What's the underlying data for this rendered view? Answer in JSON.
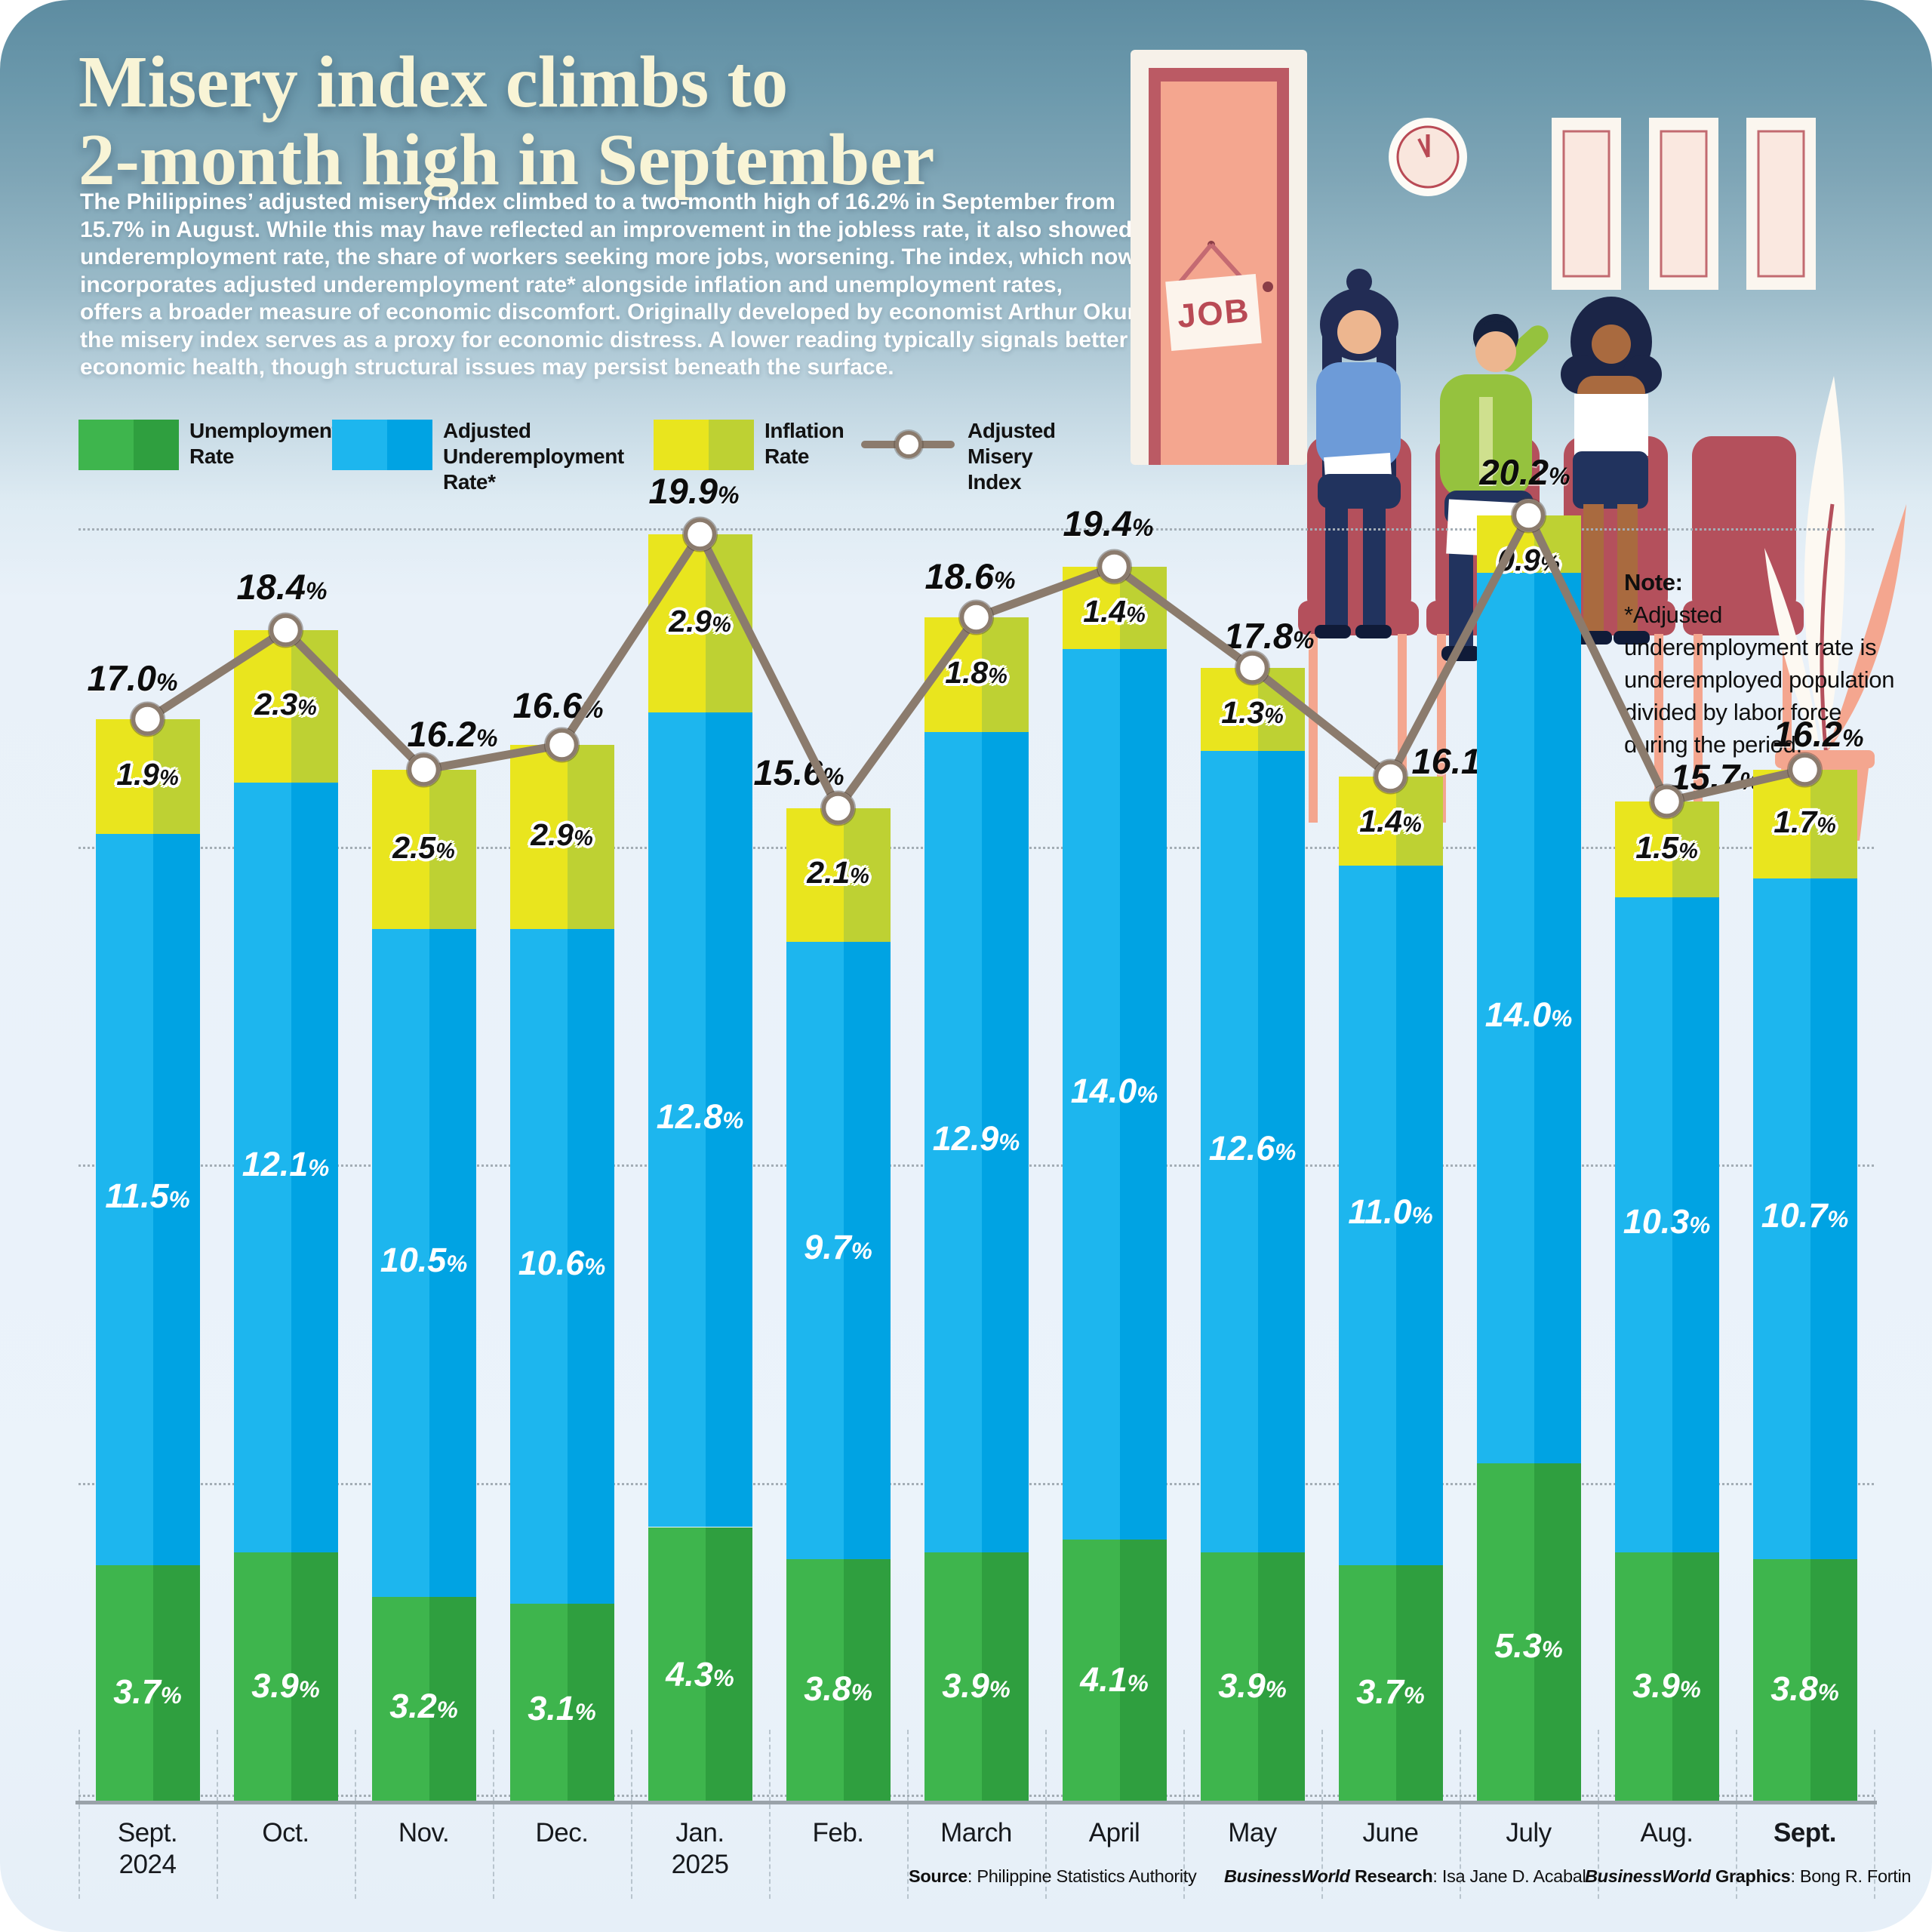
{
  "header": {
    "title_line1": "Misery index climbs to",
    "title_line2": "2-month high in September",
    "intro": "The Philippines’ adjusted misery index climbed to a two-month high of 16.2% in September from\n15.7% in August. While this may have reflected an improvement in the jobless rate, it also showed\nunderemployment rate, the share of workers seeking more jobs, worsening. The index, which now\nincorporates adjusted underemployment rate* alongside inflation and unemployment rates,\noffers a broader measure of economic discomfort. Originally developed by economist Arthur Okun,\nthe misery index serves as a proxy for economic distress. A lower reading typically signals better\neconomic health, though structural issues may persist beneath the surface."
  },
  "legend": {
    "items": [
      {
        "label": "Unemployment\nRate",
        "swatch": "green"
      },
      {
        "label": "Adjusted\nUnderemployment Rate*",
        "swatch": "blue"
      },
      {
        "label": "Inflation\nRate",
        "swatch": "yellow"
      },
      {
        "label": "Adjusted\nMisery Index",
        "swatch": "line"
      }
    ]
  },
  "note": {
    "heading": "Note:",
    "body": "*Adjusted\nunderemployment rate is\nunderemployed population\ndivided by labor force\nduring the period."
  },
  "illustration": {
    "door_sign": "JOB"
  },
  "chart_data": {
    "type": "bar",
    "subtype": "stacked-bars-with-line",
    "categories": [
      "Sept.\n2024",
      "Oct.",
      "Nov.",
      "Dec.",
      "Jan.\n2025",
      "Feb.",
      "March",
      "April",
      "May",
      "June",
      "July",
      "Aug.",
      "Sept."
    ],
    "series": [
      {
        "name": "Unemployment Rate",
        "values": [
          3.7,
          3.9,
          3.2,
          3.1,
          4.3,
          3.8,
          3.9,
          4.1,
          3.9,
          3.7,
          5.3,
          3.9,
          3.8
        ],
        "color_light": "#3eb54d",
        "color_dark": "#2f9f3f"
      },
      {
        "name": "Adjusted Underemployment Rate*",
        "values": [
          11.5,
          12.1,
          10.5,
          10.6,
          12.8,
          9.7,
          12.9,
          14.0,
          12.6,
          11.0,
          14.0,
          10.3,
          10.7
        ],
        "color_light": "#1db6ee",
        "color_dark": "#00a3e3"
      },
      {
        "name": "Inflation Rate",
        "values": [
          1.9,
          2.3,
          2.5,
          2.9,
          2.9,
          2.1,
          1.8,
          1.4,
          1.3,
          1.4,
          0.9,
          1.5,
          1.7
        ],
        "color_light": "#e9e51e",
        "color_dark": "#bed133"
      }
    ],
    "line_series": {
      "name": "Adjusted Misery Index",
      "values": [
        17.0,
        18.4,
        16.2,
        16.6,
        19.9,
        15.6,
        18.6,
        19.4,
        17.8,
        16.1,
        20.2,
        15.7,
        16.2
      ],
      "color": "#8b7b6d"
    },
    "ylim": [
      0,
      21
    ],
    "gridlines": [
      0,
      5,
      10,
      15,
      20
    ],
    "grid_on": true,
    "legend_position": "top-left",
    "value_suffix": "%"
  },
  "footer": {
    "source_label": "Source",
    "source_rest": ": Philippine Statistics Authority",
    "research_brand": "BusinessWorld",
    "research_label": " Research",
    "research_rest": ": Isa Jane D. Acabal",
    "graphics_brand": "BusinessWorld",
    "graphics_label": " Graphics",
    "graphics_rest": ": Bong R. Fortin"
  }
}
